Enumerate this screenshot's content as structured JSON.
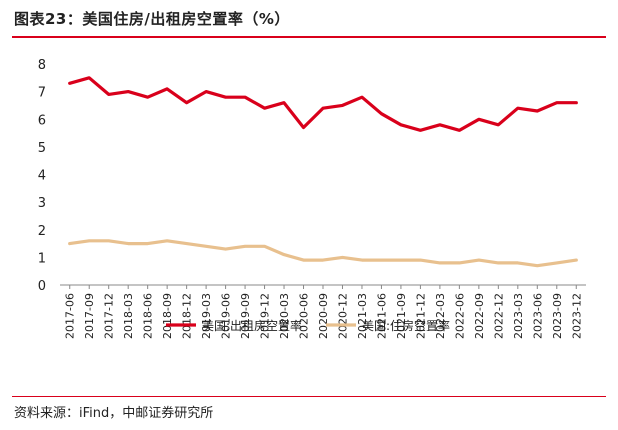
{
  "header": {
    "title": "图表23：美国住房/出租房空置率（%）"
  },
  "footer": {
    "source": "资料来源：iFind，中邮证券研究所"
  },
  "colors": {
    "accent": "#d9001b",
    "series1": "#d9001b",
    "series2": "#e8c08e"
  },
  "chart_data": {
    "type": "line",
    "title": "图表23：美国住房/出租房空置率（%）",
    "xlabel": "",
    "ylabel": "",
    "ylim": [
      0,
      8
    ],
    "yticks": [
      0,
      1,
      2,
      3,
      4,
      5,
      6,
      7,
      8
    ],
    "grid": false,
    "legend_position": "bottom",
    "x": [
      "2017-06",
      "2017-09",
      "2017-12",
      "2018-03",
      "2018-06",
      "2018-09",
      "2018-12",
      "2019-03",
      "2019-06",
      "2019-09",
      "2019-12",
      "2020-03",
      "2020-06",
      "2020-09",
      "2020-12",
      "2021-03",
      "2021-06",
      "2021-09",
      "2021-12",
      "2022-03",
      "2022-06",
      "2022-09",
      "2022-12",
      "2023-03",
      "2023-06",
      "2023-09",
      "2023-12"
    ],
    "series": [
      {
        "name": "美国:出租房空置率",
        "color": "#d9001b",
        "values": [
          7.3,
          7.5,
          6.9,
          7.0,
          6.8,
          7.1,
          6.6,
          7.0,
          6.8,
          6.8,
          6.4,
          6.6,
          5.7,
          6.4,
          6.5,
          6.8,
          6.2,
          5.8,
          5.6,
          5.8,
          5.6,
          6.0,
          5.8,
          6.4,
          6.3,
          6.6,
          6.6
        ]
      },
      {
        "name": "美国:住房空置率",
        "color": "#e8c08e",
        "values": [
          1.5,
          1.6,
          1.6,
          1.5,
          1.5,
          1.6,
          1.5,
          1.4,
          1.3,
          1.4,
          1.4,
          1.1,
          0.9,
          0.9,
          1.0,
          0.9,
          0.9,
          0.9,
          0.9,
          0.8,
          0.8,
          0.9,
          0.8,
          0.8,
          0.7,
          0.8,
          0.9
        ]
      }
    ]
  }
}
